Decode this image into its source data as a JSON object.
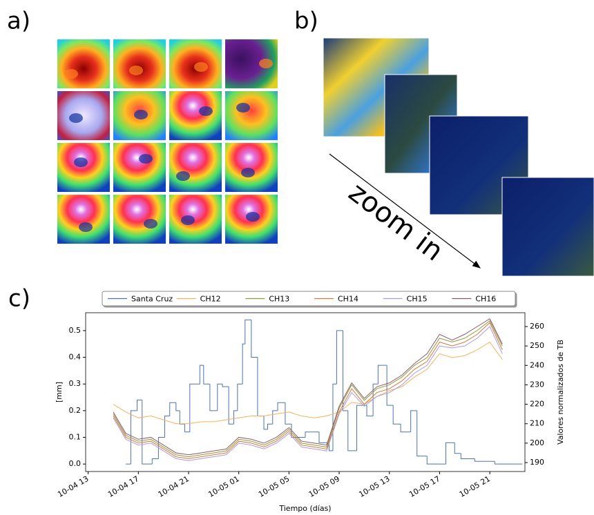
{
  "panel_labels": [
    "a)",
    "b)",
    "c)"
  ],
  "zoom_label": "zoom in",
  "chart_data": {
    "type": "line",
    "xlabel": "Tiempo (días)",
    "ylabel": "[mm]",
    "y2label": "Valores normalizados de TB",
    "xlim": [
      12.8,
      47.8
    ],
    "xticks": [
      {
        "value": 13,
        "label": "10-04 13"
      },
      {
        "value": 17,
        "label": "10-04 17"
      },
      {
        "value": 21,
        "label": "10-04 21"
      },
      {
        "value": 25,
        "label": "10-05 01"
      },
      {
        "value": 29,
        "label": "10-05 05"
      },
      {
        "value": 33,
        "label": "10-05 09"
      },
      {
        "value": 37,
        "label": "10-05 13"
      },
      {
        "value": 41,
        "label": "10-05 17"
      },
      {
        "value": 45,
        "label": "10-05 21"
      }
    ],
    "ylim": [
      -0.028,
      0.567
    ],
    "yticks": [
      {
        "value": 0,
        "label": "0.0"
      },
      0.1,
      0.2,
      0.3,
      0.4,
      0.5
    ],
    "y2lim": [
      185.4,
      267.1
    ],
    "y2ticks": [
      190,
      200,
      210,
      220,
      230,
      240,
      250,
      260
    ],
    "legend": "top",
    "series": [
      {
        "name": "Santa Cruz",
        "color": "#4c72b0",
        "drawstyle": "steps",
        "x": [
          16,
          16.4,
          16.9,
          17.3,
          18.1,
          18.6,
          19.1,
          19.5,
          20,
          20.3,
          20.7,
          21.1,
          21.9,
          22.2,
          22.7,
          23.3,
          23.7,
          24.2,
          24.6,
          24.9,
          25.3,
          25.5,
          26,
          26.5,
          27,
          27.3,
          27.7,
          28.1,
          28.7,
          29.2,
          30.3,
          31.4,
          32.2,
          32.5,
          32.8,
          33.3,
          33.7,
          34.4,
          35.2,
          35.7,
          36.1,
          36.8,
          37.3,
          37.9,
          38.7,
          39.2,
          40,
          41.1,
          41.5,
          42.2,
          42.7,
          43.8,
          45.4,
          47.6
        ],
        "values": [
          0.0,
          0.2,
          0.24,
          0.0,
          0.02,
          0.1,
          0.18,
          0.23,
          0.2,
          0.15,
          0.12,
          0.3,
          0.37,
          0.3,
          0.2,
          0.3,
          0.29,
          0.15,
          0.2,
          0.3,
          0.45,
          0.54,
          0.4,
          0.18,
          0.13,
          0.15,
          0.2,
          0.23,
          0.15,
          0.1,
          0.12,
          0.08,
          0.05,
          0.3,
          0.5,
          0.2,
          0.05,
          0.22,
          0.18,
          0.3,
          0.37,
          0.22,
          0.15,
          0.12,
          0.2,
          0.03,
          0.0,
          0.0,
          0.08,
          0.04,
          0.02,
          0.01,
          0.0,
          0.0
        ]
      },
      {
        "name": "CH12",
        "color": "#f2b25c",
        "axis": "y2",
        "x": [
          15,
          16,
          17,
          18,
          19,
          20,
          21,
          22,
          23,
          24,
          25,
          26,
          27,
          28,
          29,
          30,
          31,
          32,
          33,
          34,
          35,
          36,
          37,
          38,
          39,
          40,
          41,
          42,
          43,
          44,
          45,
          46
        ],
        "values": [
          220,
          216,
          213,
          214,
          212,
          210,
          210,
          211,
          211,
          212,
          213,
          214,
          214,
          215,
          216,
          214,
          213,
          214,
          216,
          221,
          220,
          224,
          227,
          229,
          234,
          238,
          246,
          244,
          245,
          248,
          252,
          243
        ]
      },
      {
        "name": "CH13",
        "color": "#8f9a3c",
        "axis": "y2",
        "x": [
          15,
          16,
          17,
          18,
          19,
          20,
          21,
          22,
          23,
          24,
          25,
          26,
          27,
          28,
          29,
          30,
          31,
          32,
          33,
          34,
          35,
          36,
          37,
          38,
          39,
          40,
          41,
          42,
          43,
          44,
          45,
          46
        ],
        "values": [
          215,
          204,
          201,
          202,
          198,
          194,
          193,
          194,
          195,
          196,
          202,
          201,
          199,
          202,
          207,
          200,
          199,
          198,
          218,
          230,
          222,
          228,
          230,
          234,
          240,
          244,
          254,
          252,
          254,
          258,
          263,
          250
        ]
      },
      {
        "name": "CH14",
        "color": "#d9763c",
        "axis": "y2",
        "x": [
          15,
          16,
          17,
          18,
          19,
          20,
          21,
          22,
          23,
          24,
          25,
          26,
          27,
          28,
          29,
          30,
          31,
          32,
          33,
          34,
          35,
          36,
          37,
          38,
          39,
          40,
          41,
          42,
          43,
          44,
          45,
          46
        ],
        "values": [
          214,
          203,
          200,
          201,
          197,
          193,
          192,
          193,
          194,
          195,
          201,
          200,
          198,
          201,
          206,
          199,
          198,
          197,
          216,
          228,
          220,
          226,
          228,
          232,
          238,
          242,
          252,
          250,
          252,
          256,
          262,
          248
        ]
      },
      {
        "name": "CH15",
        "color": "#a99be0",
        "axis": "y2",
        "x": [
          15,
          16,
          17,
          18,
          19,
          20,
          21,
          22,
          23,
          24,
          25,
          26,
          27,
          28,
          29,
          30,
          31,
          32,
          33,
          34,
          35,
          36,
          37,
          38,
          39,
          40,
          41,
          42,
          43,
          44,
          45,
          46
        ],
        "values": [
          213,
          202,
          199,
          200,
          196,
          192,
          191,
          192,
          193,
          194,
          200,
          199,
          197,
          200,
          205,
          198,
          197,
          196,
          215,
          226,
          219,
          224,
          226,
          230,
          236,
          240,
          250,
          249,
          250,
          254,
          260,
          246
        ]
      },
      {
        "name": "CH16",
        "color": "#8c5a66",
        "axis": "y2",
        "x": [
          15,
          16,
          17,
          18,
          19,
          20,
          21,
          22,
          23,
          24,
          25,
          26,
          27,
          28,
          29,
          30,
          31,
          32,
          33,
          34,
          35,
          36,
          37,
          38,
          39,
          40,
          41,
          42,
          43,
          44,
          45,
          46
        ],
        "values": [
          216,
          205,
          202,
          203,
          199,
          195,
          194,
          195,
          196,
          197,
          203,
          202,
          200,
          203,
          208,
          201,
          200,
          199,
          219,
          231,
          223,
          229,
          231,
          235,
          241,
          246,
          256,
          253,
          256,
          260,
          264,
          251
        ]
      }
    ]
  }
}
